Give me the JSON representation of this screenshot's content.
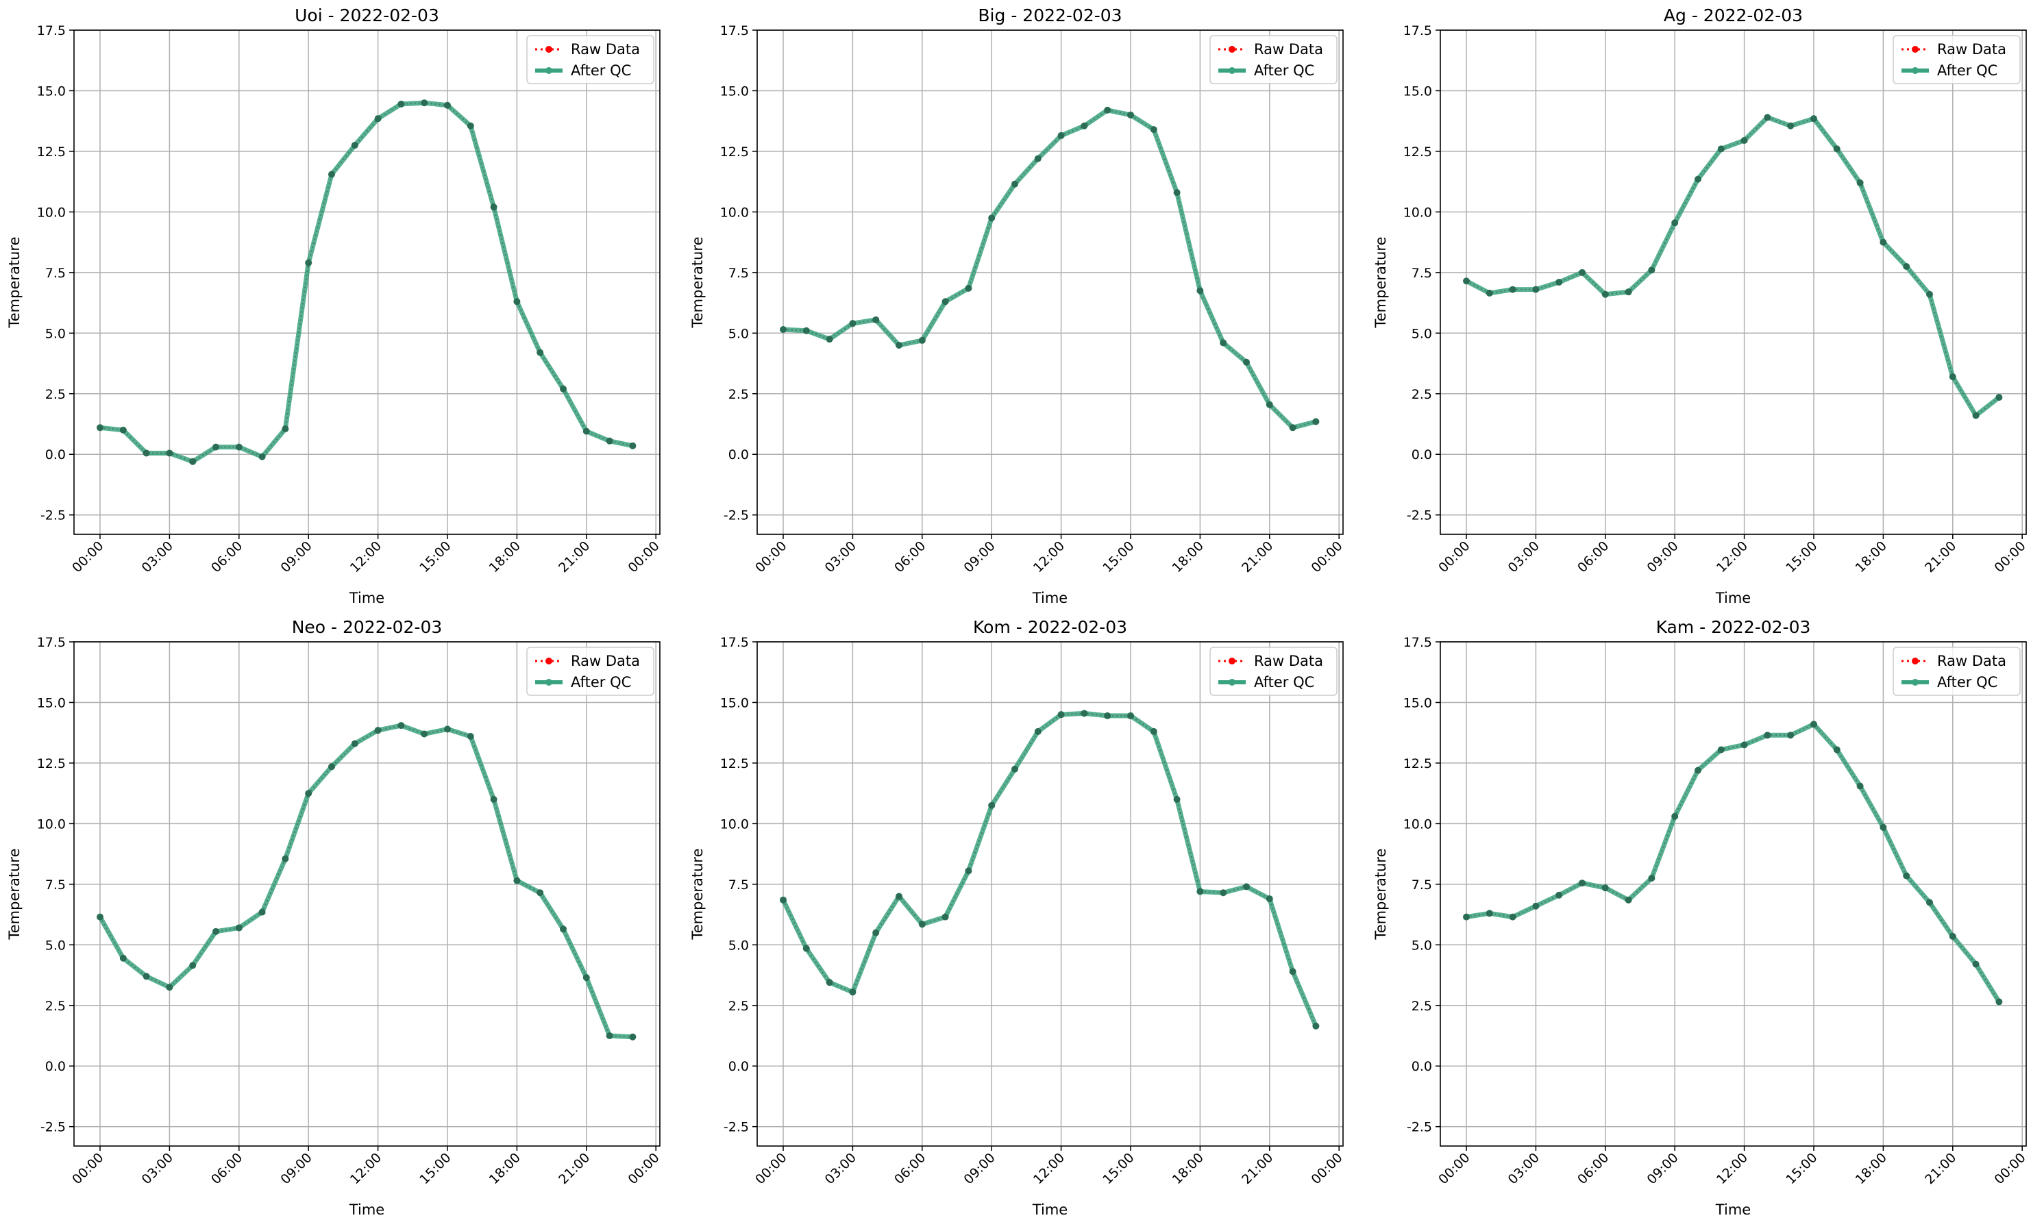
{
  "chart_data": [
    {
      "type": "line",
      "title": "Uoi - 2022-02-03",
      "xlabel": "Time",
      "ylabel": "Temperature",
      "x": [
        "00:00",
        "01:00",
        "02:00",
        "03:00",
        "04:00",
        "05:00",
        "06:00",
        "07:00",
        "08:00",
        "09:00",
        "10:00",
        "11:00",
        "12:00",
        "13:00",
        "14:00",
        "15:00",
        "16:00",
        "17:00",
        "18:00",
        "19:00",
        "20:00",
        "21:00",
        "22:00",
        "23:00"
      ],
      "x_ticks": [
        "00:00",
        "03:00",
        "06:00",
        "09:00",
        "12:00",
        "15:00",
        "18:00",
        "21:00",
        "00:00"
      ],
      "ylim": [
        -3.3,
        17.5
      ],
      "y_ticks": [
        "-2.5",
        "0.0",
        "2.5",
        "5.0",
        "7.5",
        "10.0",
        "12.5",
        "15.0",
        "17.5"
      ],
      "grid": true,
      "legend": "top-right",
      "series": [
        {
          "name": "Raw Data",
          "color": "#ff0000",
          "style": "dotted",
          "values": [
            1.1,
            1.0,
            0.05,
            0.05,
            -0.3,
            0.3,
            0.3,
            -0.1,
            1.05,
            7.9,
            11.55,
            12.75,
            13.85,
            14.45,
            14.5,
            14.4,
            13.55,
            10.2,
            6.3,
            4.2,
            2.7,
            0.95,
            0.55,
            0.35
          ]
        },
        {
          "name": "After QC",
          "color": "#3aa37e",
          "style": "solid",
          "values": [
            1.1,
            1.0,
            0.05,
            0.05,
            -0.3,
            0.3,
            0.3,
            -0.1,
            1.05,
            7.9,
            11.55,
            12.75,
            13.85,
            14.45,
            14.5,
            14.4,
            13.55,
            10.2,
            6.3,
            4.2,
            2.7,
            0.95,
            0.55,
            0.35
          ]
        }
      ]
    },
    {
      "type": "line",
      "title": "Big - 2022-02-03",
      "xlabel": "Time",
      "ylabel": "Temperature",
      "x": [
        "00:00",
        "01:00",
        "02:00",
        "03:00",
        "04:00",
        "05:00",
        "06:00",
        "07:00",
        "08:00",
        "09:00",
        "10:00",
        "11:00",
        "12:00",
        "13:00",
        "14:00",
        "15:00",
        "16:00",
        "17:00",
        "18:00",
        "19:00",
        "20:00",
        "21:00",
        "22:00",
        "23:00"
      ],
      "x_ticks": [
        "00:00",
        "03:00",
        "06:00",
        "09:00",
        "12:00",
        "15:00",
        "18:00",
        "21:00",
        "00:00"
      ],
      "ylim": [
        -3.3,
        17.5
      ],
      "y_ticks": [
        "-2.5",
        "0.0",
        "2.5",
        "5.0",
        "7.5",
        "10.0",
        "12.5",
        "15.0",
        "17.5"
      ],
      "grid": true,
      "legend": "top-right",
      "series": [
        {
          "name": "Raw Data",
          "color": "#ff0000",
          "style": "dotted",
          "values": [
            5.15,
            5.1,
            4.75,
            5.4,
            5.55,
            4.5,
            4.7,
            6.3,
            6.85,
            9.75,
            11.15,
            12.2,
            13.15,
            13.55,
            14.2,
            14.0,
            13.4,
            10.8,
            6.75,
            4.6,
            3.8,
            2.05,
            1.1,
            1.35
          ]
        },
        {
          "name": "After QC",
          "color": "#3aa37e",
          "style": "solid",
          "values": [
            5.15,
            5.1,
            4.75,
            5.4,
            5.55,
            4.5,
            4.7,
            6.3,
            6.85,
            9.75,
            11.15,
            12.2,
            13.15,
            13.55,
            14.2,
            14.0,
            13.4,
            10.8,
            6.75,
            4.6,
            3.8,
            2.05,
            1.1,
            1.35
          ]
        }
      ]
    },
    {
      "type": "line",
      "title": "Ag - 2022-02-03",
      "xlabel": "Time",
      "ylabel": "Temperature",
      "x": [
        "00:00",
        "01:00",
        "02:00",
        "03:00",
        "04:00",
        "05:00",
        "06:00",
        "07:00",
        "08:00",
        "09:00",
        "10:00",
        "11:00",
        "12:00",
        "13:00",
        "14:00",
        "15:00",
        "16:00",
        "17:00",
        "18:00",
        "19:00",
        "20:00",
        "21:00",
        "22:00",
        "23:00"
      ],
      "x_ticks": [
        "00:00",
        "03:00",
        "06:00",
        "09:00",
        "12:00",
        "15:00",
        "18:00",
        "21:00",
        "00:00"
      ],
      "ylim": [
        -3.3,
        17.5
      ],
      "y_ticks": [
        "-2.5",
        "0.0",
        "2.5",
        "5.0",
        "7.5",
        "10.0",
        "12.5",
        "15.0",
        "17.5"
      ],
      "grid": true,
      "legend": "top-right",
      "series": [
        {
          "name": "Raw Data",
          "color": "#ff0000",
          "style": "dotted",
          "values": [
            7.15,
            6.65,
            6.8,
            6.8,
            7.1,
            7.5,
            6.6,
            6.7,
            7.6,
            9.55,
            11.35,
            12.6,
            12.95,
            13.9,
            13.55,
            13.85,
            12.6,
            11.2,
            8.75,
            7.75,
            6.6,
            3.2,
            1.6,
            2.35
          ]
        },
        {
          "name": "After QC",
          "color": "#3aa37e",
          "style": "solid",
          "values": [
            7.15,
            6.65,
            6.8,
            6.8,
            7.1,
            7.5,
            6.6,
            6.7,
            7.6,
            9.55,
            11.35,
            12.6,
            12.95,
            13.9,
            13.55,
            13.85,
            12.6,
            11.2,
            8.75,
            7.75,
            6.6,
            3.2,
            1.6,
            2.35
          ]
        }
      ]
    },
    {
      "type": "line",
      "title": "Neo - 2022-02-03",
      "xlabel": "Time",
      "ylabel": "Temperature",
      "x": [
        "00:00",
        "01:00",
        "02:00",
        "03:00",
        "04:00",
        "05:00",
        "06:00",
        "07:00",
        "08:00",
        "09:00",
        "10:00",
        "11:00",
        "12:00",
        "13:00",
        "14:00",
        "15:00",
        "16:00",
        "17:00",
        "18:00",
        "19:00",
        "20:00",
        "21:00",
        "22:00",
        "23:00"
      ],
      "x_ticks": [
        "00:00",
        "03:00",
        "06:00",
        "09:00",
        "12:00",
        "15:00",
        "18:00",
        "21:00",
        "00:00"
      ],
      "ylim": [
        -3.3,
        17.5
      ],
      "y_ticks": [
        "-2.5",
        "0.0",
        "2.5",
        "5.0",
        "7.5",
        "10.0",
        "12.5",
        "15.0",
        "17.5"
      ],
      "grid": true,
      "legend": "top-right",
      "series": [
        {
          "name": "Raw Data",
          "color": "#ff0000",
          "style": "dotted",
          "values": [
            6.15,
            4.45,
            3.7,
            3.25,
            4.15,
            5.55,
            5.7,
            6.35,
            8.55,
            11.25,
            12.35,
            13.3,
            13.85,
            14.05,
            13.7,
            13.9,
            13.6,
            11.0,
            7.65,
            7.15,
            5.65,
            3.65,
            1.25,
            1.2
          ]
        },
        {
          "name": "After QC",
          "color": "#3aa37e",
          "style": "solid",
          "values": [
            6.15,
            4.45,
            3.7,
            3.25,
            4.15,
            5.55,
            5.7,
            6.35,
            8.55,
            11.25,
            12.35,
            13.3,
            13.85,
            14.05,
            13.7,
            13.9,
            13.6,
            11.0,
            7.65,
            7.15,
            5.65,
            3.65,
            1.25,
            1.2
          ]
        }
      ]
    },
    {
      "type": "line",
      "title": "Kom - 2022-02-03",
      "xlabel": "Time",
      "ylabel": "Temperature",
      "x": [
        "00:00",
        "01:00",
        "02:00",
        "03:00",
        "04:00",
        "05:00",
        "06:00",
        "07:00",
        "08:00",
        "09:00",
        "10:00",
        "11:00",
        "12:00",
        "13:00",
        "14:00",
        "15:00",
        "16:00",
        "17:00",
        "18:00",
        "19:00",
        "20:00",
        "21:00",
        "22:00",
        "23:00"
      ],
      "x_ticks": [
        "00:00",
        "03:00",
        "06:00",
        "09:00",
        "12:00",
        "15:00",
        "18:00",
        "21:00",
        "00:00"
      ],
      "ylim": [
        -3.3,
        17.5
      ],
      "y_ticks": [
        "-2.5",
        "0.0",
        "2.5",
        "5.0",
        "7.5",
        "10.0",
        "12.5",
        "15.0",
        "17.5"
      ],
      "grid": true,
      "legend": "top-right",
      "series": [
        {
          "name": "Raw Data",
          "color": "#ff0000",
          "style": "dotted",
          "values": [
            6.85,
            4.85,
            3.45,
            3.05,
            5.5,
            7.0,
            5.85,
            6.15,
            8.05,
            10.75,
            12.25,
            13.8,
            14.5,
            14.55,
            14.45,
            14.45,
            13.8,
            11.0,
            7.2,
            7.15,
            7.4,
            6.9,
            3.9,
            1.65
          ]
        },
        {
          "name": "After QC",
          "color": "#3aa37e",
          "style": "solid",
          "values": [
            6.85,
            4.85,
            3.45,
            3.05,
            5.5,
            7.0,
            5.85,
            6.15,
            8.05,
            10.75,
            12.25,
            13.8,
            14.5,
            14.55,
            14.45,
            14.45,
            13.8,
            11.0,
            7.2,
            7.15,
            7.4,
            6.9,
            3.9,
            1.65
          ]
        }
      ]
    },
    {
      "type": "line",
      "title": "Kam - 2022-02-03",
      "xlabel": "Time",
      "ylabel": "Temperature",
      "x": [
        "00:00",
        "01:00",
        "02:00",
        "03:00",
        "04:00",
        "05:00",
        "06:00",
        "07:00",
        "08:00",
        "09:00",
        "10:00",
        "11:00",
        "12:00",
        "13:00",
        "14:00",
        "15:00",
        "16:00",
        "17:00",
        "18:00",
        "19:00",
        "20:00",
        "21:00",
        "22:00",
        "23:00"
      ],
      "x_ticks": [
        "00:00",
        "03:00",
        "06:00",
        "09:00",
        "12:00",
        "15:00",
        "18:00",
        "21:00",
        "00:00"
      ],
      "ylim": [
        -3.3,
        17.5
      ],
      "y_ticks": [
        "-2.5",
        "0.0",
        "2.5",
        "5.0",
        "7.5",
        "10.0",
        "12.5",
        "15.0",
        "17.5"
      ],
      "grid": true,
      "legend": "top-right",
      "series": [
        {
          "name": "Raw Data",
          "color": "#ff0000",
          "style": "dotted",
          "values": [
            6.15,
            6.3,
            6.15,
            6.6,
            7.05,
            7.55,
            7.35,
            6.85,
            7.75,
            10.3,
            12.2,
            13.05,
            13.25,
            13.65,
            13.65,
            14.1,
            13.05,
            11.55,
            9.85,
            7.85,
            6.75,
            5.35,
            4.2,
            2.65
          ]
        },
        {
          "name": "After QC",
          "color": "#3aa37e",
          "style": "solid",
          "values": [
            6.15,
            6.3,
            6.15,
            6.6,
            7.05,
            7.55,
            7.35,
            6.85,
            7.75,
            10.3,
            12.2,
            13.05,
            13.25,
            13.65,
            13.65,
            14.1,
            13.05,
            11.55,
            9.85,
            7.85,
            6.75,
            5.35,
            4.2,
            2.65
          ]
        }
      ]
    }
  ]
}
